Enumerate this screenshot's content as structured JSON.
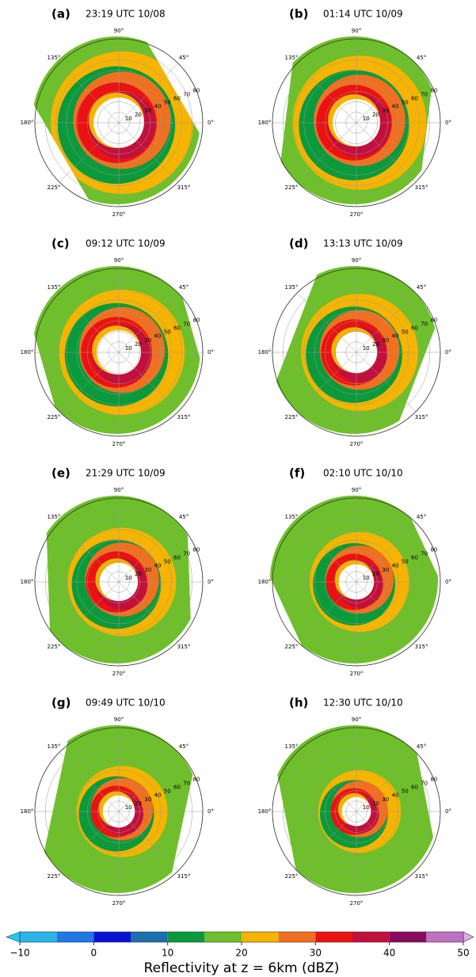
{
  "panels": [
    {
      "label": "(a)",
      "title": "23:19 UTC 10/08"
    },
    {
      "label": "(b)",
      "title": "01:14 UTC 10/09"
    },
    {
      "label": "(c)",
      "title": "09:12 UTC 10/09"
    },
    {
      "label": "(d)",
      "title": "13:13 UTC 10/09"
    },
    {
      "label": "(e)",
      "title": "21:29 UTC 10/09"
    },
    {
      "label": "(f)",
      "title": "02:10 UTC 10/10"
    },
    {
      "label": "(g)",
      "title": "09:49 UTC 10/10"
    },
    {
      "label": "(h)",
      "title": "12:30 UTC 10/10"
    }
  ],
  "angle_labels": [
    "0°",
    "45°",
    "90°",
    "135°",
    "180°",
    "225°",
    "270°",
    "315°"
  ],
  "radius_labels": [
    "10",
    "20",
    "30",
    "40",
    "50",
    "60",
    "70",
    "80"
  ],
  "colorbar": {
    "label": "Reflectivity at z = 6km (dBZ)",
    "bounds": [
      -10,
      -5,
      0,
      5,
      10,
      15,
      20,
      25,
      30,
      35,
      40,
      45,
      50
    ],
    "colors": [
      "#2ab4ea",
      "#1f78e6",
      "#0a12d6",
      "#1a6fae",
      "#0a9a3c",
      "#6ec02a",
      "#f6b400",
      "#f07020",
      "#ea1212",
      "#c2103c",
      "#8a0a5c",
      "#c070c0"
    ],
    "under_color": "#22c8f2",
    "over_color": "#dcaae4",
    "ticks": [
      {
        "value": -10,
        "label": "−10"
      },
      0,
      10,
      20,
      30,
      40,
      50
    ]
  }
}
